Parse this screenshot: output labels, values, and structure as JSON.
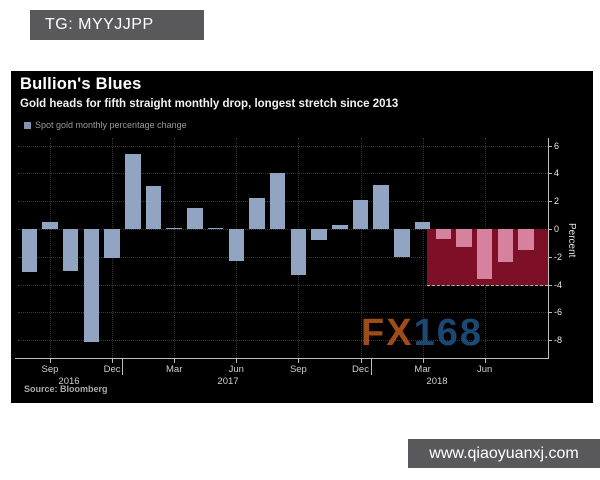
{
  "overlays": {
    "badge": "TG: MYYJJPP",
    "website": "www.qiaoyuanxj.com",
    "watermark_fx": "FX",
    "watermark_168": "168"
  },
  "chart": {
    "title": "Bullion's Blues",
    "subtitle": "Gold heads for fifth straight monthly drop, longest stretch since 2013",
    "legend_label": "Spot gold monthly percentage change",
    "source": "Source: Bloomberg",
    "y_axis_title": "Percent"
  },
  "chart_data": {
    "type": "bar",
    "title": "Bullion's Blues",
    "subtitle": "Gold heads for fifth straight monthly drop, longest stretch since 2013",
    "series_name": "Spot gold monthly percentage change",
    "ylabel": "Percent",
    "ylim": [
      -9.3,
      6.5
    ],
    "yticks": [
      6,
      4,
      2,
      0,
      -2,
      -4,
      -6,
      -8
    ],
    "grid": "dotted",
    "source": "Bloomberg",
    "x": [
      "Aug 2016",
      "Sep 2016",
      "Oct 2016",
      "Nov 2016",
      "Dec 2016",
      "Jan 2017",
      "Feb 2017",
      "Mar 2017",
      "Apr 2017",
      "May 2017",
      "Jun 2017",
      "Jul 2017",
      "Aug 2017",
      "Sep 2017",
      "Oct 2017",
      "Nov 2017",
      "Dec 2017",
      "Jan 2018",
      "Feb 2018",
      "Mar 2018",
      "Apr 2018",
      "May 2018",
      "Jun 2018",
      "Jul 2018",
      "Aug 2018"
    ],
    "values": [
      -3.1,
      0.5,
      -3.0,
      -8.1,
      -2.1,
      5.4,
      3.1,
      0.1,
      1.5,
      0.1,
      -2.3,
      2.2,
      4.0,
      -3.3,
      -0.8,
      0.3,
      2.1,
      3.2,
      -2.0,
      0.5,
      -0.7,
      -1.3,
      -3.6,
      -2.4,
      -1.5
    ],
    "x_tick_labels": [
      "Sep",
      "Dec",
      "Mar",
      "Jun",
      "Sep",
      "Dec",
      "Mar",
      "Jun"
    ],
    "x_tick_month_indices": [
      1,
      4,
      7,
      10,
      13,
      16,
      19,
      22
    ],
    "year_labels": [
      "2016",
      "2017",
      "2018"
    ],
    "highlight_start_index": 20,
    "highlight_region": {
      "from_value": 0,
      "to_value": -4,
      "meaning": "five straight monthly drops in 2018"
    },
    "colors": {
      "bar": "#91a5c3",
      "highlight_bar": "#d6829e",
      "highlight_box": "#7d1026",
      "background": "#000000",
      "accent_text": "#ffffff"
    }
  }
}
